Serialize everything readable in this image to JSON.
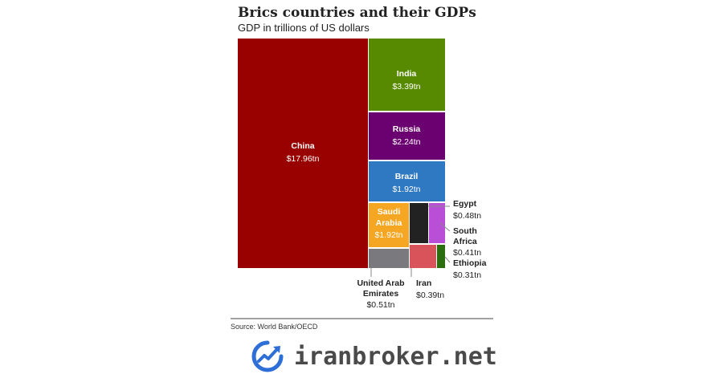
{
  "title": "Brics countries and their GDPs",
  "subtitle": "GDP in trillions of US dollars",
  "source": "Source: World Bank/OECD",
  "watermark": "iranbroker.net",
  "chart_data": {
    "type": "treemap",
    "title": "Brics countries and their GDPs",
    "subtitle": "GDP in trillions of US dollars",
    "unit": "trillions of US dollars",
    "items": [
      {
        "name": "China",
        "value": 17.96,
        "label": "$17.96tn",
        "color": "#990000"
      },
      {
        "name": "India",
        "value": 3.39,
        "label": "$3.39tn",
        "color": "#588a00"
      },
      {
        "name": "Russia",
        "value": 2.24,
        "label": "$2.24tn",
        "color": "#6b0070"
      },
      {
        "name": "Brazil",
        "value": 1.92,
        "label": "$1.92tn",
        "color": "#2f78c2"
      },
      {
        "name": "Saudi Arabia",
        "value": 1.92,
        "label": "$1.92tn",
        "color": "#f5a623"
      },
      {
        "name": "United Arab Emirates",
        "value": 0.51,
        "label": "$0.51tn",
        "color": "#7a7a7e"
      },
      {
        "name": "Egypt",
        "value": 0.48,
        "label": "$0.48tn",
        "color": "#222222"
      },
      {
        "name": "South Africa",
        "value": 0.41,
        "label": "$0.41tn",
        "color": "#b84fd6"
      },
      {
        "name": "Iran",
        "value": 0.39,
        "label": "$0.39tn",
        "color": "#d9535a"
      },
      {
        "name": "Ethiopia",
        "value": 0.31,
        "label": "$0.31tn",
        "color": "#2a6e10"
      }
    ]
  }
}
